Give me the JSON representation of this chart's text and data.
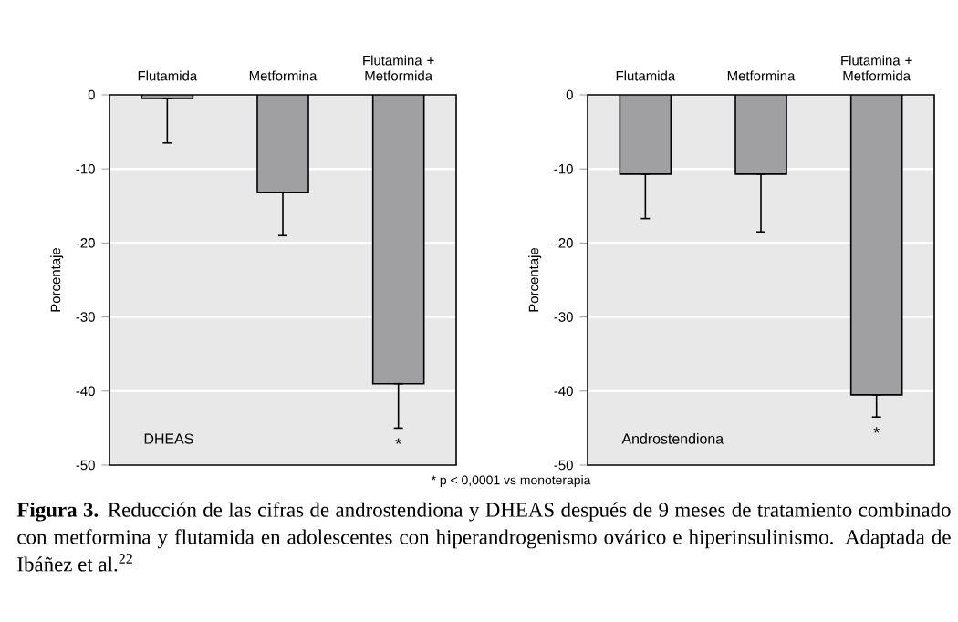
{
  "chart_data": [
    {
      "type": "bar",
      "title": "DHEAS",
      "ylabel": "Porcentaje",
      "categories": [
        "Flutamida",
        "Metformina",
        "Flutamina + Metformida"
      ],
      "values": [
        -0.5,
        -13.2,
        -39
      ],
      "errors": [
        [
          -6.5,
          -0.5
        ],
        [
          -19,
          -13.2
        ],
        [
          -45,
          -39
        ]
      ],
      "color": "#a0a0a2",
      "ylim": [
        -50,
        0
      ],
      "yticks": [
        -50,
        -40,
        -30,
        -20,
        -10,
        0
      ],
      "grid": "y",
      "annotations": [
        "*"
      ]
    },
    {
      "type": "bar",
      "title": "Androstendiona",
      "ylabel": "Porcentaje",
      "categories": [
        "Flutamida",
        "Metformina",
        "Flutamina + Metformida"
      ],
      "values": [
        -10.7,
        -10.7,
        -40.5
      ],
      "errors": [
        [
          -16.7,
          -10.7
        ],
        [
          -18.5,
          -10.7
        ],
        [
          -43.5,
          -40.5
        ]
      ],
      "color": "#a0a0a2",
      "ylim": [
        -50,
        0
      ],
      "yticks": [
        -50,
        -40,
        -30,
        -20,
        -10,
        0
      ],
      "grid": "y",
      "annotations": [
        "*",
        "* p < 0,0001 vs monoterapia",
        "**Figura 3.** Reducción de las cifras de androstendiona y DHEAS después de 9 meses de tratamiento combinado con metformina y flutamida en adolescentes con hiperandrogenismo ovárico e hiperinsulinismo. Adaptada de Ibáñez et al.$^{22}$"
      ]
    }
  ]
}
